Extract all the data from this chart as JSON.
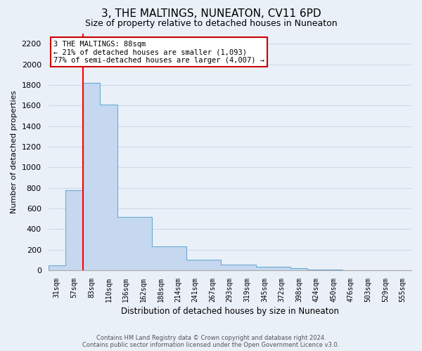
{
  "title": "3, THE MALTINGS, NUNEATON, CV11 6PD",
  "subtitle": "Size of property relative to detached houses in Nuneaton",
  "xlabel": "Distribution of detached houses by size in Nuneaton",
  "ylabel": "Number of detached properties",
  "bar_labels": [
    "31sqm",
    "57sqm",
    "83sqm",
    "110sqm",
    "136sqm",
    "162sqm",
    "188sqm",
    "214sqm",
    "241sqm",
    "267sqm",
    "293sqm",
    "319sqm",
    "345sqm",
    "372sqm",
    "398sqm",
    "424sqm",
    "450sqm",
    "476sqm",
    "503sqm",
    "529sqm",
    "555sqm"
  ],
  "bar_values": [
    50,
    780,
    1820,
    1610,
    520,
    520,
    230,
    230,
    105,
    105,
    55,
    55,
    35,
    35,
    20,
    10,
    5,
    0,
    0,
    0,
    0
  ],
  "bar_color": "#c5d8f0",
  "bar_edge_color": "#6aaad4",
  "grid_color": "#d0d8e8",
  "background_color": "#eaf0f8",
  "red_line_index": 2,
  "ylim": [
    0,
    2300
  ],
  "yticks": [
    0,
    200,
    400,
    600,
    800,
    1000,
    1200,
    1400,
    1600,
    1800,
    2000,
    2200
  ],
  "annotation_text": "3 THE MALTINGS: 88sqm\n← 21% of detached houses are smaller (1,093)\n77% of semi-detached houses are larger (4,007) →",
  "annotation_box_color": "#ffffff",
  "annotation_box_edge": "#cc0000",
  "footer_line1": "Contains HM Land Registry data © Crown copyright and database right 2024.",
  "footer_line2": "Contains public sector information licensed under the Open Government Licence v3.0."
}
